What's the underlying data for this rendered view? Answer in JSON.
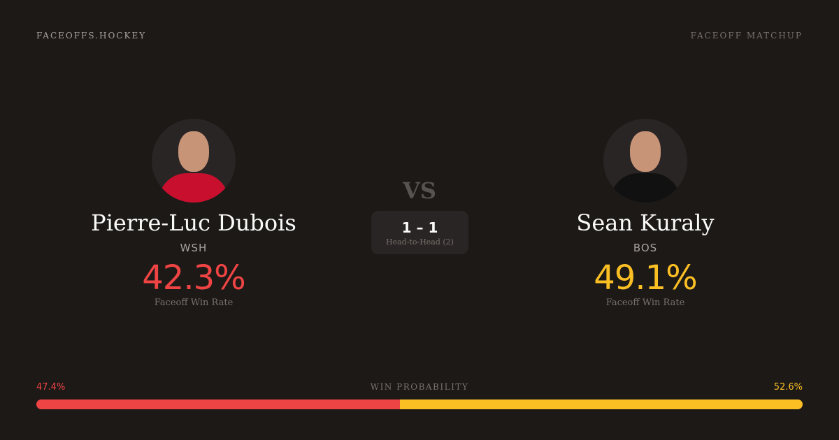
{
  "brand": "FACEOFFS.HOCKEY",
  "page_kind": "FACEOFF MATCHUP",
  "vs": "VS",
  "players": [
    {
      "name": "Pierre-Luc Dubois",
      "team": "WSH",
      "win_rate": "42.3%",
      "rate_label": "Faceoff Win Rate",
      "color": "#ef4444",
      "jersey": "#c8102e"
    },
    {
      "name": "Sean Kuraly",
      "team": "BOS",
      "win_rate": "49.1%",
      "rate_label": "Faceoff Win Rate",
      "color": "#fbbf24",
      "jersey": "#111111"
    }
  ],
  "head_to_head": {
    "score": "1 – 1",
    "label": "Head-to-Head (2)"
  },
  "win_probability": {
    "label": "WIN PROBABILITY",
    "left": "47.4%",
    "right": "52.6%",
    "left_value": 47.4,
    "right_value": 52.6
  }
}
